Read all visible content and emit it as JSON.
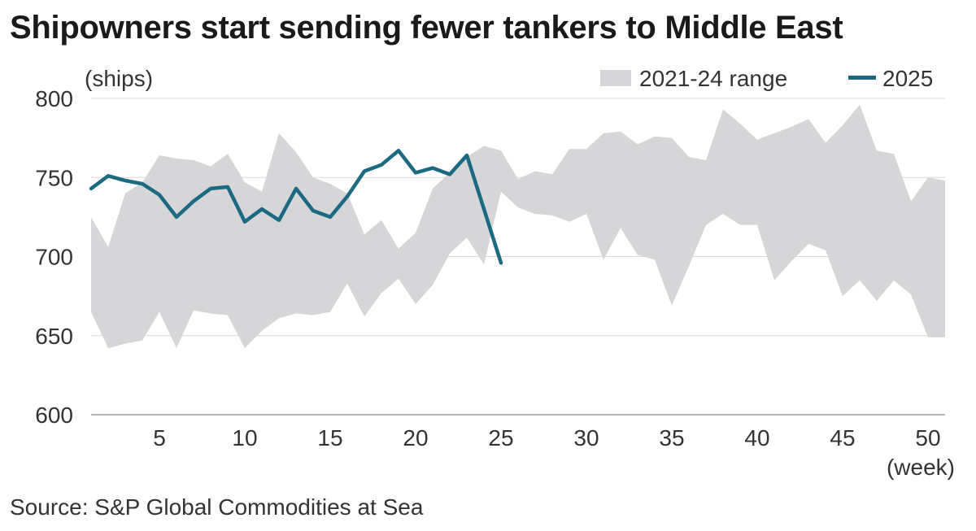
{
  "title": "Shipowners start sending fewer tankers to Middle East",
  "source": "Source: S&P Global Commodities at Sea",
  "chart_data": {
    "type": "line",
    "title": "Shipowners start sending fewer tankers to Middle East",
    "ylabel": "(ships)",
    "xlabel": "(week)",
    "xlim": [
      1,
      51
    ],
    "ylim": [
      600,
      800
    ],
    "x_ticks": [
      5,
      10,
      15,
      20,
      25,
      30,
      35,
      40,
      45,
      50
    ],
    "y_ticks": [
      600,
      650,
      700,
      750,
      800
    ],
    "grid": true,
    "legend_position": "top-right",
    "colors": {
      "range": "#d6d6d8",
      "line": "#1b6a82",
      "grid": "#d9d9d9"
    },
    "range_series": {
      "name": "2021-24 range",
      "x": [
        1,
        2,
        3,
        4,
        5,
        6,
        7,
        8,
        9,
        10,
        11,
        12,
        13,
        14,
        15,
        16,
        17,
        18,
        19,
        20,
        21,
        22,
        23,
        24,
        25,
        26,
        27,
        28,
        29,
        30,
        31,
        32,
        33,
        34,
        35,
        36,
        37,
        38,
        39,
        40,
        41,
        42,
        43,
        44,
        45,
        46,
        47,
        48,
        49,
        50,
        51
      ],
      "low": [
        665,
        642,
        645,
        647,
        665,
        642,
        666,
        664,
        663,
        642,
        653,
        661,
        664,
        663,
        665,
        683,
        662,
        677,
        686,
        670,
        682,
        702,
        712,
        695,
        741,
        731,
        727,
        726,
        722,
        727,
        698,
        718,
        701,
        698,
        669,
        694,
        720,
        727,
        720,
        720,
        685,
        697,
        708,
        704,
        675,
        685,
        672,
        685,
        676,
        649,
        649
      ],
      "high": [
        725,
        706,
        740,
        747,
        764,
        762,
        761,
        757,
        765,
        747,
        741,
        778,
        766,
        750,
        746,
        740,
        714,
        723,
        705,
        715,
        743,
        753,
        763,
        770,
        767,
        749,
        754,
        752,
        768,
        768,
        778,
        779,
        771,
        776,
        775,
        763,
        761,
        793,
        784,
        774,
        778,
        782,
        787,
        772,
        783,
        796,
        767,
        765,
        735,
        750,
        748
      ]
    },
    "series": [
      {
        "name": "2025",
        "x": [
          1,
          2,
          3,
          4,
          5,
          6,
          7,
          8,
          9,
          10,
          11,
          12,
          13,
          14,
          15,
          16,
          17,
          18,
          19,
          20,
          21,
          22,
          23,
          24,
          25
        ],
        "y": [
          743,
          751,
          748,
          746,
          739,
          725,
          735,
          743,
          744,
          722,
          730,
          723,
          743,
          729,
          725,
          738,
          754,
          758,
          767,
          753,
          756,
          752,
          764,
          730,
          696
        ]
      }
    ]
  }
}
